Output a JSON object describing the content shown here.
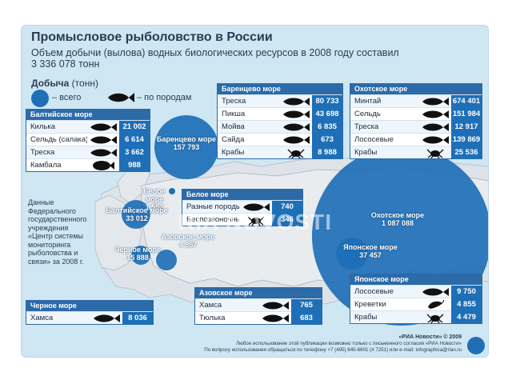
{
  "title": "Промысловое рыболовство в России",
  "subtitle": "Объем добычи (вылова) водных биологических ресурсов в 2008 году составил 3 336 078 тонн",
  "legend": {
    "title_bold": "Добыча",
    "title_unit": "(тонн)",
    "total": "– всего",
    "by_species": "– по породам"
  },
  "panels": {
    "baltic": {
      "title": "Балтийское море",
      "rows": [
        {
          "name": "Килька",
          "value": "21 002",
          "icon": "fish-icon"
        },
        {
          "name": "Сельдь (салака)",
          "value": "6 614",
          "icon": "fish-icon"
        },
        {
          "name": "Треска",
          "value": "3 662",
          "icon": "fish-icon"
        },
        {
          "name": "Камбала",
          "value": "988",
          "icon": "flatfish-icon"
        }
      ]
    },
    "barents": {
      "title": "Баренцево море",
      "rows": [
        {
          "name": "Треска",
          "value": "80 733",
          "icon": "fish-icon"
        },
        {
          "name": "Пикша",
          "value": "43 698",
          "icon": "fish-icon"
        },
        {
          "name": "Мойва",
          "value": "6 835",
          "icon": "fish-icon"
        },
        {
          "name": "Сайда",
          "value": "673",
          "icon": "fish-icon"
        },
        {
          "name": "Крабы",
          "value": "8 988",
          "icon": "crab-icon"
        }
      ]
    },
    "okhotsk": {
      "title": "Охотское море",
      "rows": [
        {
          "name": "Минтай",
          "value": "674 401",
          "icon": "fish-icon"
        },
        {
          "name": "Сельдь",
          "value": "151 984",
          "icon": "fish-icon"
        },
        {
          "name": "Треска",
          "value": "12 917",
          "icon": "fish-icon"
        },
        {
          "name": "Лососевые",
          "value": "139 869",
          "icon": "fish-icon"
        },
        {
          "name": "Крабы",
          "value": "25 536",
          "icon": "crab-icon"
        }
      ]
    },
    "white": {
      "title": "Белое море",
      "rows": [
        {
          "name": "Разные породы",
          "value": "740",
          "icon": "fish-icon"
        },
        {
          "name": "Беспозвоночные",
          "value": "346",
          "icon": "crab-icon"
        }
      ]
    },
    "black": {
      "title": "Черное море",
      "rows": [
        {
          "name": "Хамса",
          "value": "8 036",
          "icon": "fish-icon"
        }
      ]
    },
    "azov": {
      "title": "Азовское море",
      "rows": [
        {
          "name": "Хамса",
          "value": "765",
          "icon": "fish-icon"
        },
        {
          "name": "Тюлька",
          "value": "683",
          "icon": "fish-icon"
        }
      ]
    },
    "japan": {
      "title": "Японское море",
      "rows": [
        {
          "name": "Лососевые",
          "value": "9 750",
          "icon": "fish-icon"
        },
        {
          "name": "Креветки",
          "value": "4 855",
          "icon": "shrimp-icon"
        },
        {
          "name": "Крабы",
          "value": "4 479",
          "icon": "crab-icon"
        }
      ]
    }
  },
  "bubbles": {
    "barents": {
      "name": "Баренцево море",
      "value": "157 793"
    },
    "white": {
      "name": "Белое море",
      "value": "1 552"
    },
    "baltic": {
      "name": "Балтийское море",
      "value": "33 012"
    },
    "black": {
      "name": "Черное море",
      "value": "15 888"
    },
    "azov": {
      "name": "Азовское море",
      "value": "4 857"
    },
    "okhotsk": {
      "name": "Охотское море",
      "value": "1 087 088"
    },
    "japan": {
      "name": "Японское море",
      "value": "37 457"
    }
  },
  "note": "Данные Федерального государственного учреждения «Центр системы мониторинга рыболовства и связи» за 2008 г.",
  "footer": {
    "source": "«РИА Новости» © 2009",
    "line1": "Любое использование этой публикации возможно только с письменного согласия «РИА Новости»",
    "line2": "По вопросу использования обращаться по телефону +7 (495) 645-6601 (# 7251) или e-mail: infographica@rian.ru"
  },
  "watermark": "RIA NOVOSTI",
  "colors": {
    "bubble": "#1e6fb7",
    "header": "#2c6aa8",
    "sea": "#cfe7f3",
    "land": "#dde3e8"
  }
}
